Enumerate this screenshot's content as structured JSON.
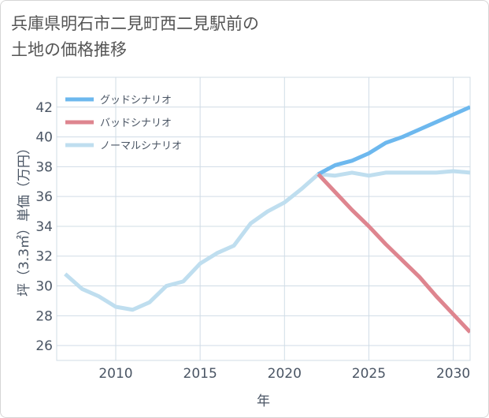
{
  "title": {
    "line1": "兵庫県明石市二見町西二見駅前の",
    "line2": "土地の価格推移"
  },
  "colors": {
    "good": "#6db8ee",
    "bad": "#de858f",
    "normal": "#bfdeef",
    "grid": "#d0dce6",
    "axis_text": "#4a5564"
  },
  "chart_data": {
    "type": "line",
    "xlabel": "年",
    "ylabel": "坪（3.3㎡）単価（万円）",
    "xlim": [
      2006.5,
      2031
    ],
    "ylim": [
      25,
      44
    ],
    "x_ticks": [
      2010,
      2015,
      2020,
      2025,
      2030
    ],
    "y_ticks": [
      26,
      28,
      30,
      32,
      34,
      36,
      38,
      40,
      42
    ],
    "legend_position": "top-left",
    "series": [
      {
        "key": "good",
        "name": "グッドシナリオ",
        "x": [
          2022,
          2023,
          2024,
          2025,
          2026,
          2027,
          2028,
          2029,
          2030,
          2031
        ],
        "y": [
          37.5,
          38.1,
          38.4,
          38.9,
          39.6,
          40.0,
          40.5,
          41.0,
          41.5,
          42.0
        ]
      },
      {
        "key": "bad",
        "name": "バッドシナリオ",
        "x": [
          2022,
          2023,
          2024,
          2025,
          2026,
          2027,
          2028,
          2029,
          2030,
          2031
        ],
        "y": [
          37.5,
          36.3,
          35.1,
          34.0,
          32.8,
          31.7,
          30.6,
          29.3,
          28.1,
          26.9
        ]
      },
      {
        "key": "normal",
        "name": "ノーマルシナリオ",
        "x": [
          2007,
          2008,
          2009,
          2010,
          2011,
          2012,
          2013,
          2014,
          2015,
          2016,
          2017,
          2018,
          2019,
          2020,
          2021,
          2022,
          2023,
          2024,
          2025,
          2026,
          2027,
          2028,
          2029,
          2030,
          2031
        ],
        "y": [
          30.8,
          29.8,
          29.3,
          28.6,
          28.4,
          28.9,
          30.0,
          30.3,
          31.5,
          32.2,
          32.7,
          34.2,
          35.0,
          35.6,
          36.5,
          37.5,
          37.4,
          37.6,
          37.4,
          37.6,
          37.6,
          37.6,
          37.6,
          37.7,
          37.6
        ]
      }
    ]
  }
}
